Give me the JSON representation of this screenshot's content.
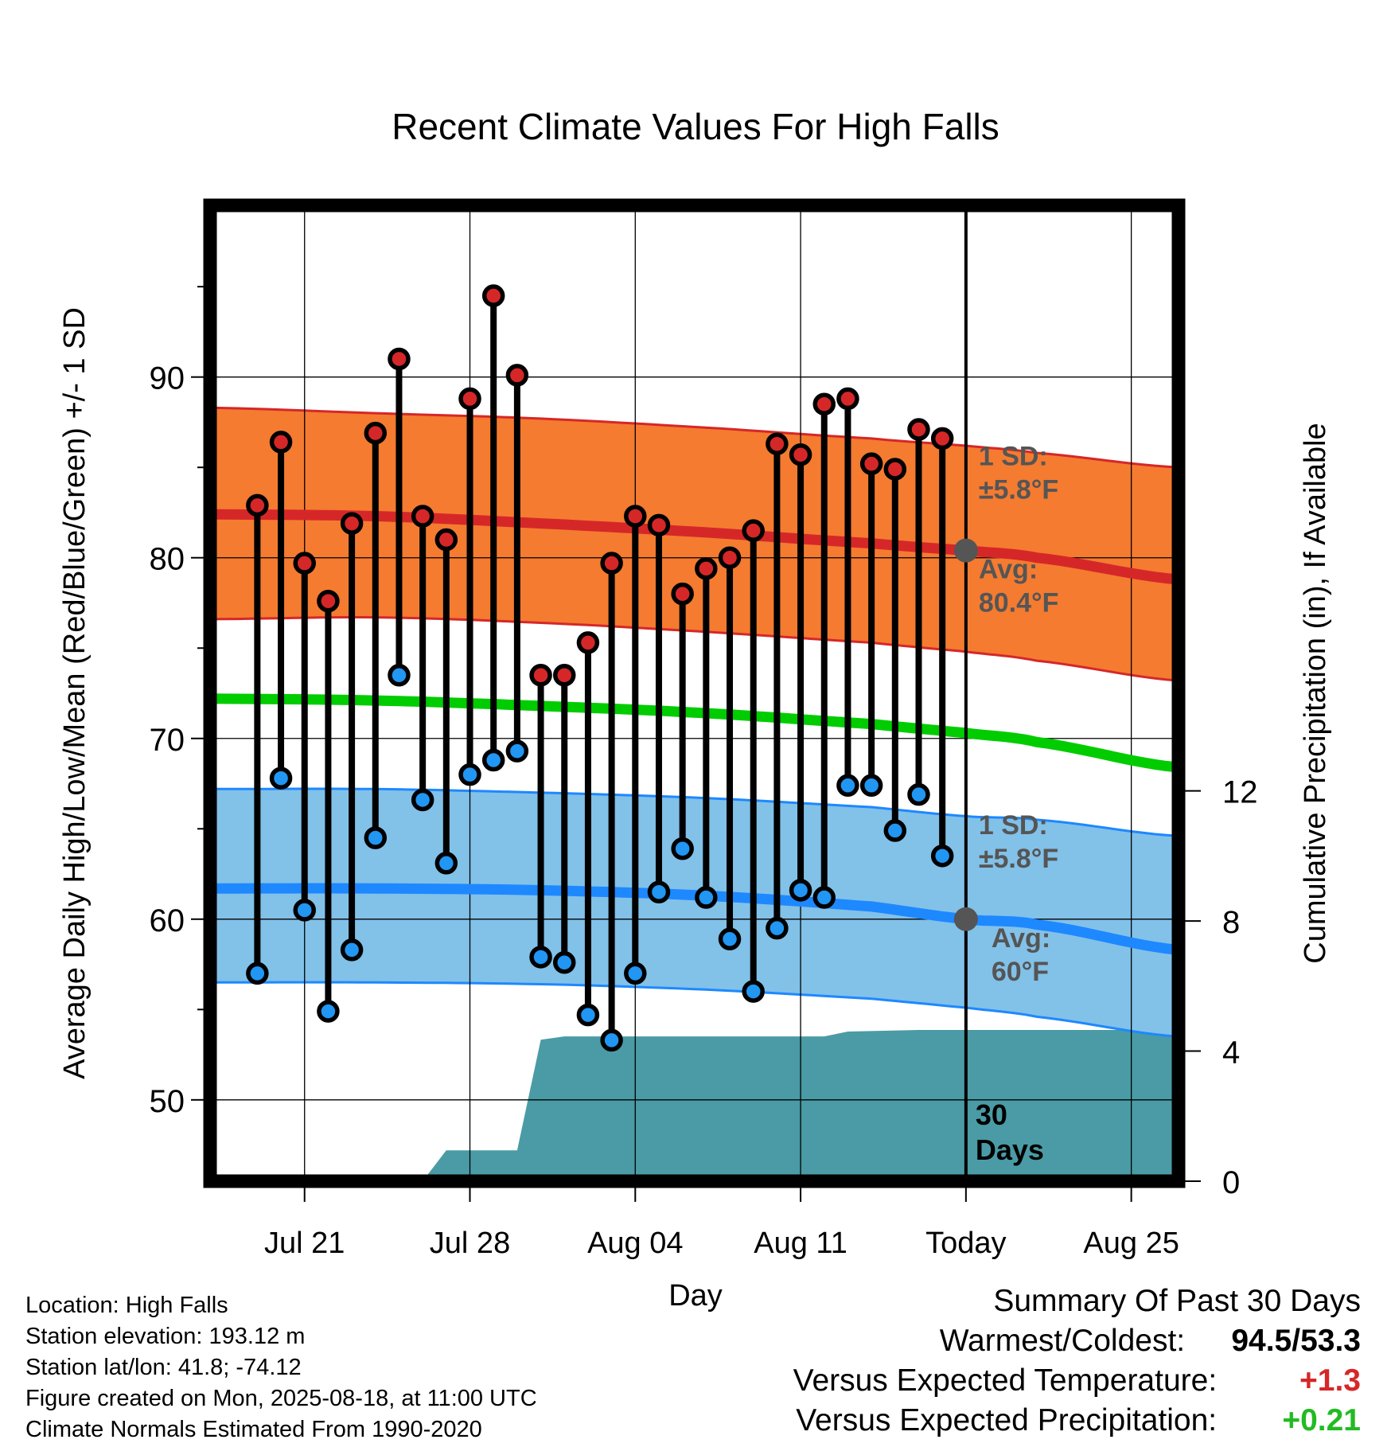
{
  "chart_data": {
    "type": "line",
    "title": "Recent Climate Values For High Falls",
    "xlabel": "Day",
    "ylabel": "Average Daily High/Low/Mean (Red/Blue/Green) +/- 1 SD",
    "y2label": "Cumulative Precipitation (in), If Available",
    "x_tick_labels": [
      "Jul 21",
      "Jul 28",
      "Aug 04",
      "Aug 11",
      "Today",
      "Aug 25"
    ],
    "x_tick_dates": [
      "2025-07-21",
      "2025-07-28",
      "2025-08-04",
      "2025-08-11",
      "2025-08-18",
      "2025-08-25"
    ],
    "xlim": [
      "2025-07-17",
      "2025-08-27"
    ],
    "ylim": [
      45.5,
      99.5
    ],
    "y_ticks": [
      50,
      60,
      70,
      80,
      90
    ],
    "y2lim": [
      0,
      30
    ],
    "y2_ticks": [
      0,
      4,
      8,
      12
    ],
    "grid": true,
    "today_label": "Today",
    "period_label": [
      "30",
      "Days"
    ],
    "observed": {
      "dates": [
        "2025-07-19",
        "2025-07-20",
        "2025-07-21",
        "2025-07-22",
        "2025-07-23",
        "2025-07-24",
        "2025-07-25",
        "2025-07-26",
        "2025-07-27",
        "2025-07-28",
        "2025-07-29",
        "2025-07-30",
        "2025-07-31",
        "2025-08-01",
        "2025-08-02",
        "2025-08-03",
        "2025-08-04",
        "2025-08-05",
        "2025-08-06",
        "2025-08-07",
        "2025-08-08",
        "2025-08-09",
        "2025-08-10",
        "2025-08-11",
        "2025-08-12",
        "2025-08-13",
        "2025-08-14",
        "2025-08-15",
        "2025-08-16",
        "2025-08-17"
      ],
      "highs": [
        82.9,
        86.4,
        79.7,
        77.6,
        81.9,
        86.9,
        91.0,
        82.3,
        81.0,
        88.8,
        94.5,
        90.1,
        73.5,
        73.5,
        75.3,
        79.7,
        82.3,
        81.8,
        78.0,
        79.4,
        80.0,
        81.5,
        86.3,
        85.7,
        88.5,
        88.8,
        85.2,
        84.9,
        87.1,
        86.6
      ],
      "lows": [
        57.0,
        67.8,
        60.5,
        54.9,
        58.3,
        64.5,
        73.5,
        66.6,
        63.1,
        68.0,
        68.8,
        69.3,
        57.9,
        57.6,
        54.7,
        53.3,
        57.0,
        61.5,
        63.9,
        61.2,
        58.9,
        56.0,
        59.5,
        61.6,
        61.2,
        67.4,
        67.4,
        64.9,
        66.9,
        63.5
      ],
      "high_color": "#d62728",
      "low_color": "#2196f3",
      "stem_color": "#000000"
    },
    "normals": {
      "dates": [
        "2025-07-17",
        "2025-07-24",
        "2025-07-31",
        "2025-08-07",
        "2025-08-14",
        "2025-08-18",
        "2025-08-21",
        "2025-08-27"
      ],
      "high_mean": [
        82.4,
        82.3,
        81.9,
        81.4,
        80.8,
        80.4,
        80.0,
        78.8
      ],
      "high_plus_sd": [
        88.3,
        88.0,
        87.7,
        87.2,
        86.6,
        86.2,
        85.8,
        85.0
      ],
      "high_minus_sd": [
        76.6,
        76.7,
        76.4,
        75.9,
        75.3,
        74.8,
        74.3,
        73.2
      ],
      "mean": [
        72.2,
        72.1,
        71.8,
        71.4,
        70.8,
        70.3,
        69.8,
        68.4
      ],
      "low_mean": [
        61.7,
        61.7,
        61.6,
        61.3,
        60.7,
        60.0,
        59.7,
        58.3
      ],
      "low_plus_sd": [
        67.2,
        67.2,
        67.0,
        66.7,
        66.2,
        65.7,
        65.5,
        64.6
      ],
      "low_minus_sd": [
        56.5,
        56.5,
        56.4,
        56.1,
        55.6,
        55.1,
        54.6,
        53.5
      ],
      "high_band_color": "#f47b30",
      "high_line_color": "#d62728",
      "low_band_color": "#82c1e8",
      "low_line_color": "#1e88ff",
      "mean_line_color": "#00cc00"
    },
    "precipitation": {
      "dates": [
        "2025-07-17",
        "2025-07-26",
        "2025-07-27",
        "2025-07-30",
        "2025-07-31",
        "2025-08-01",
        "2025-08-12",
        "2025-08-13",
        "2025-08-16",
        "2025-08-27"
      ],
      "values": [
        0,
        0,
        0.95,
        0.95,
        4.35,
        4.45,
        4.45,
        4.6,
        4.65,
        4.65
      ],
      "color": "#4a9ba5"
    },
    "annotations": {
      "high_sd_title": "1 SD:",
      "high_sd_value": "±5.8°F",
      "high_avg_title": "Avg:",
      "high_avg_value": "80.4°F",
      "low_sd_title": "1 SD:",
      "low_sd_value": "±5.8°F",
      "low_avg_title": "Avg:",
      "low_avg_value": "60°F",
      "high_avg": 80.4,
      "low_avg": 60,
      "marker_color": "#555555"
    }
  },
  "footer": {
    "location": "Location: High Falls",
    "elevation": "Station elevation: 193.12 m",
    "latlon": "Station lat/lon: 41.8; -74.12",
    "created": "Figure created on Mon, 2025-08-18, at 11:00 UTC",
    "normals": "Climate Normals Estimated From 1990-2020"
  },
  "summary": {
    "title": "Summary Of Past 30 Days",
    "warm_cold_label": "Warmest/Coldest:",
    "warm_cold_value": "94.5/53.3",
    "temp_label": "Versus Expected Temperature:",
    "temp_value": "+1.3",
    "precip_label": "Versus Expected Precipitation:",
    "precip_value": "+0.21"
  }
}
